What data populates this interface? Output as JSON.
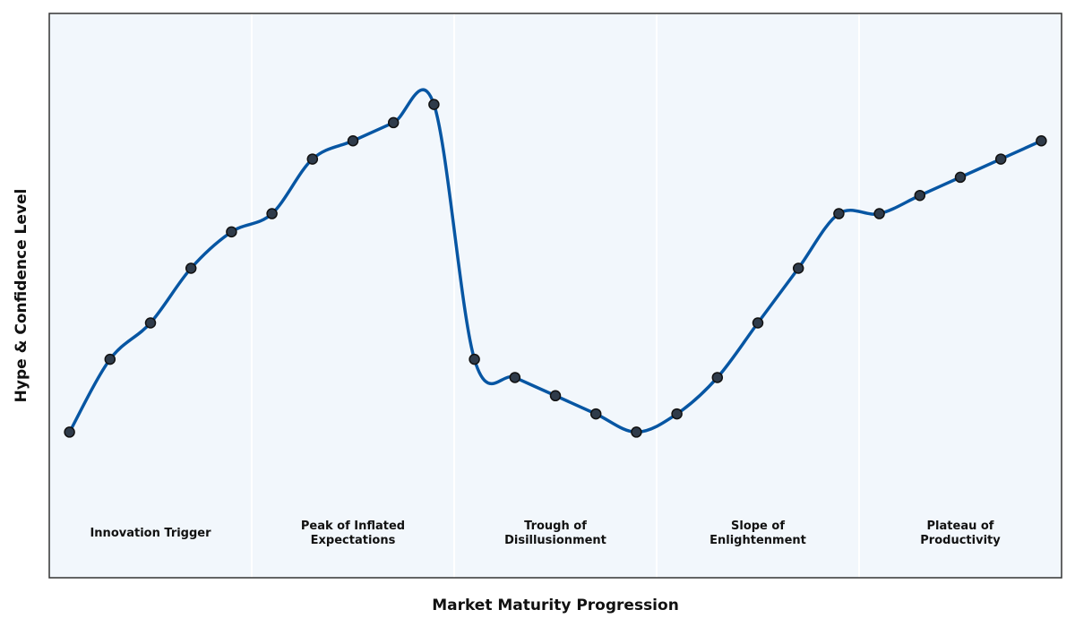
{
  "chart_data": {
    "type": "line",
    "title": "",
    "xlabel": "Market Maturity Progression",
    "ylabel": "Hype & Confidence Level",
    "xlim": [
      -0.5,
      24.5
    ],
    "ylim": [
      0,
      31
    ],
    "x_ticks_visible": false,
    "y_ticks_visible": false,
    "grid": false,
    "phases": [
      {
        "label": "Innovation Trigger",
        "start": -0.5,
        "end": 4.5
      },
      {
        "label": "Peak of Inflated\nExpectations",
        "start": 4.5,
        "end": 9.5
      },
      {
        "label": "Trough of\nDisillusionment",
        "start": 9.5,
        "end": 14.5
      },
      {
        "label": "Slope of\nEnlightenment",
        "start": 14.5,
        "end": 19.5
      },
      {
        "label": "Plateau of\nProductivity",
        "start": 19.5,
        "end": 24.5
      }
    ],
    "phase_label_y": 2.5,
    "series": [
      {
        "x": [
          0,
          1,
          2,
          3,
          4,
          5,
          6,
          7,
          8,
          9,
          10,
          11,
          12,
          13,
          14,
          15,
          16,
          17,
          18,
          19,
          20,
          21,
          22,
          23,
          24
        ],
        "y": [
          8,
          12,
          14,
          17,
          19,
          20,
          23,
          24,
          25,
          26,
          12,
          11,
          10,
          9,
          8,
          9,
          11,
          14,
          17,
          20,
          20,
          21,
          22,
          23,
          24
        ]
      }
    ],
    "colors": {
      "line": "#0756a3",
      "marker_fill": "#2f3b4a",
      "marker_edge": "#111111",
      "plot_background": "#f2f7fc",
      "phase_separator": "#ffffff",
      "frame": "#333333"
    }
  }
}
